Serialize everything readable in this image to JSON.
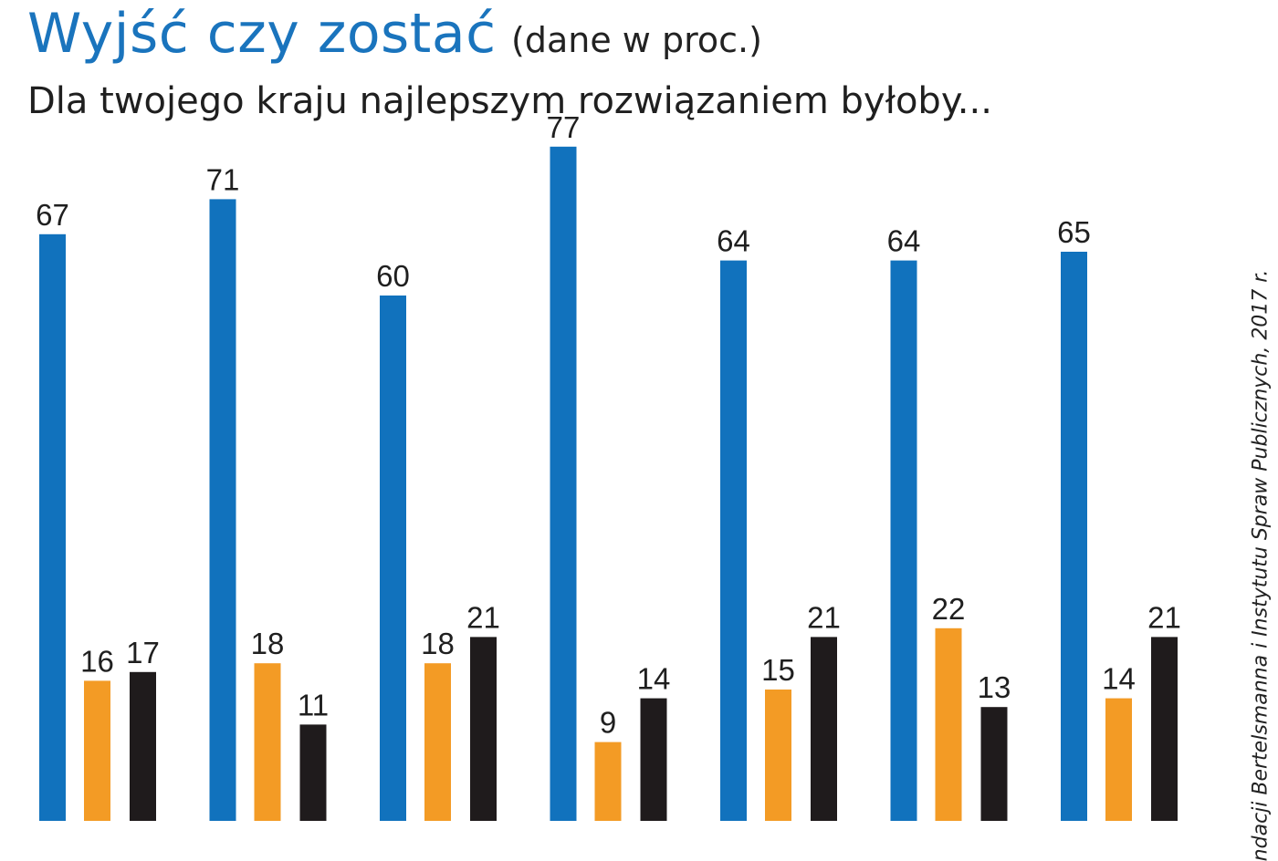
{
  "header": {
    "title": "Wyjść czy zostać",
    "title_note": "(dane w proc.)",
    "subtitle": "Dla twojego kraju najlepszym rozwiązaniem byłoby..."
  },
  "source": "ndacji Bertelsmanna i Instytutu Spraw Publicznych, 2017 r.",
  "colors": {
    "blue": "#1172bd",
    "orange": "#f39b25",
    "black": "#1f1b1c"
  },
  "chart_data": {
    "type": "bar",
    "title": "Wyjść czy zostać",
    "subtitle": "Dla twojego kraju najlepszym rozwiązaniem byłoby...",
    "categories": [
      "",
      "",
      "",
      "",
      "",
      "",
      ""
    ],
    "series": [
      {
        "name": "",
        "color": "#1172bd",
        "values": [
          67,
          71,
          60,
          77,
          64,
          64,
          65
        ]
      },
      {
        "name": "",
        "color": "#f39b25",
        "values": [
          16,
          18,
          18,
          9,
          15,
          22,
          14
        ]
      },
      {
        "name": "",
        "color": "#1f1b1c",
        "values": [
          17,
          11,
          21,
          14,
          21,
          13,
          21
        ]
      }
    ],
    "ylim": [
      0,
      100
    ],
    "grid": false,
    "legend": "none"
  }
}
